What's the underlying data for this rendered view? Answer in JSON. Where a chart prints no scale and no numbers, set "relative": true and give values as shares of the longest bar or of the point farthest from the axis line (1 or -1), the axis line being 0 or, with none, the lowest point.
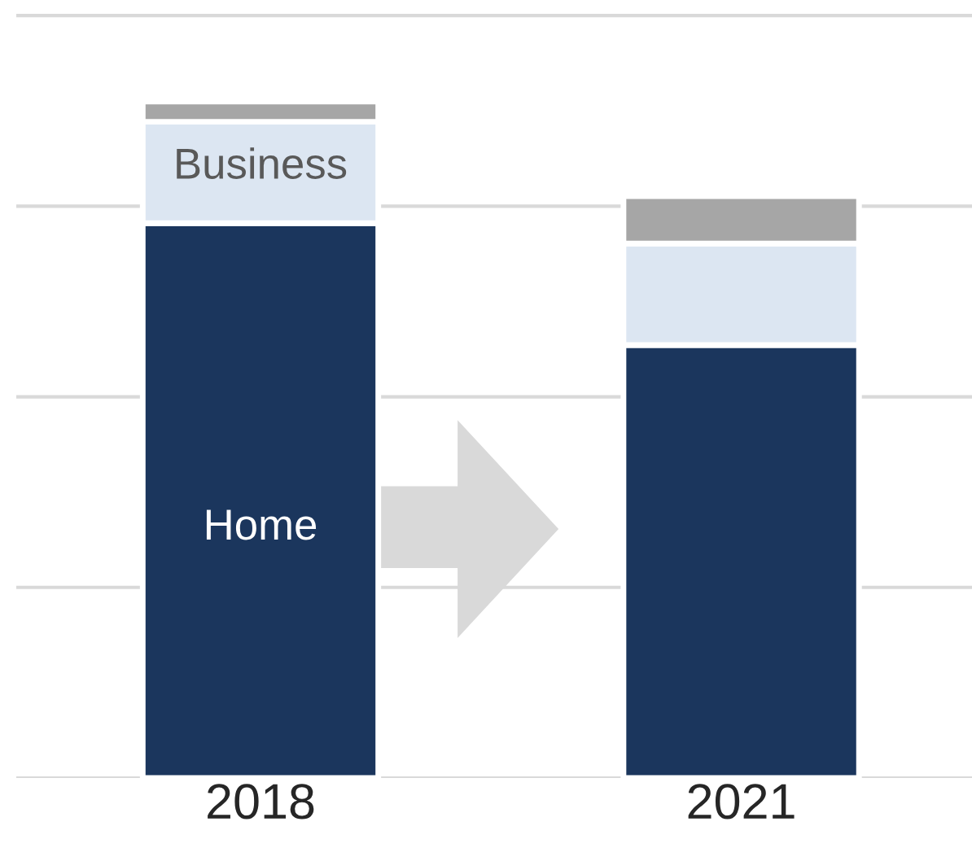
{
  "chart_data": {
    "type": "bar",
    "stacked": true,
    "relative": true,
    "grid": "y",
    "categories": [
      "2018",
      "2021"
    ],
    "series": [
      {
        "name": "Home",
        "color": "#1b365d",
        "values": [
          0.82,
          0.64
        ]
      },
      {
        "name": "Business",
        "color": "#dce6f2",
        "values": [
          0.15,
          0.15
        ]
      },
      {
        "color": "#a6a6a6",
        "values": [
          0.03,
          0.07
        ]
      }
    ]
  }
}
